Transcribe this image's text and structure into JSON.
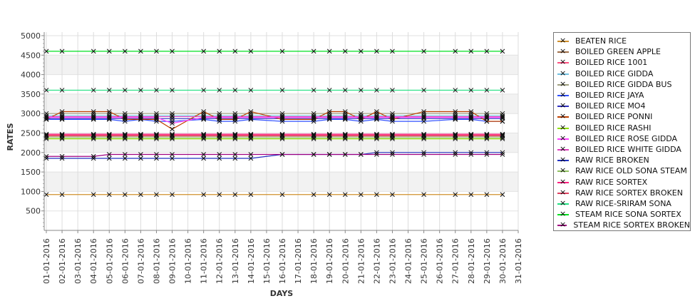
{
  "chart_data": {
    "type": "line",
    "title": "",
    "xlabel": "DAYS",
    "ylabel": "RATES",
    "ylim": [
      0,
      5000
    ],
    "yticks": [
      500,
      1000,
      1500,
      2000,
      2500,
      3000,
      3500,
      4000,
      4500,
      5000
    ],
    "xticks": [
      "01-01-2016",
      "02-01-2016",
      "03-01-2016",
      "04-01-2016",
      "05-01-2016",
      "06-01-2016",
      "07-01-2016",
      "08-01-2016",
      "09-01-2016",
      "10-01-2016",
      "11-01-2016",
      "12-01-2016",
      "13-01-2016",
      "14-01-2016",
      "15-01-2016",
      "16-01-2016",
      "17-01-2016",
      "18-01-2016",
      "19-01-2016",
      "20-01-2016",
      "21-01-2016",
      "22-01-2016",
      "23-01-2016",
      "24-01-2016",
      "25-01-2016",
      "26-01-2016",
      "27-01-2016",
      "28-01-2016",
      "29-01-2016",
      "30-01-2016",
      "31-01-2016"
    ],
    "x_days": [
      1,
      2,
      4,
      5,
      6,
      7,
      8,
      9,
      11,
      12,
      13,
      14,
      16,
      18,
      19,
      20,
      21,
      22,
      23,
      25,
      27,
      28,
      29,
      30
    ],
    "legend_position": "right",
    "series": [
      {
        "name": "BEATEN RICE",
        "color": "#d0902c",
        "values": [
          920,
          920,
          920,
          920,
          920,
          920,
          920,
          920,
          920,
          920,
          920,
          920,
          920,
          920,
          920,
          920,
          920,
          920,
          920,
          920,
          920,
          920,
          920,
          920
        ]
      },
      {
        "name": "BOILED GREEN APPLE",
        "color": "#a0704a",
        "values": [
          2420,
          2420,
          2420,
          2420,
          2420,
          2420,
          2420,
          2420,
          2420,
          2420,
          2420,
          2420,
          2420,
          2420,
          2420,
          2420,
          2420,
          2420,
          2420,
          2420,
          2420,
          2420,
          2420,
          2420
        ]
      },
      {
        "name": "BOILED RICE 1001",
        "color": "#ff5080",
        "values": [
          2450,
          2450,
          2450,
          2450,
          2450,
          2450,
          2450,
          2450,
          2450,
          2450,
          2450,
          2450,
          2450,
          2450,
          2450,
          2450,
          2450,
          2450,
          2450,
          2450,
          2450,
          2450,
          2450,
          2450
        ]
      },
      {
        "name": "BOILED RICE GIDDA",
        "color": "#70c0e0",
        "values": [
          2950,
          2950,
          2950,
          2950,
          2950,
          2950,
          2950,
          2950,
          2950,
          2950,
          2950,
          2950,
          2950,
          2950,
          2950,
          2950,
          2950,
          2950,
          2950,
          2950,
          2950,
          2950,
          2950,
          2950
        ]
      },
      {
        "name": "BOILED RICE GIDDA BUS",
        "color": "#a0a080",
        "values": [
          3000,
          3000,
          3000,
          3000,
          3000,
          3000,
          3000,
          3000,
          3000,
          3000,
          3000,
          3000,
          3000,
          3000,
          3000,
          3000,
          3000,
          3000,
          3000,
          3000,
          3000,
          3000,
          3000,
          3000
        ]
      },
      {
        "name": "BOILED RICE JAYA",
        "color": "#3050ff",
        "values": [
          2850,
          2850,
          2850,
          2850,
          2800,
          2850,
          2800,
          2800,
          2850,
          2800,
          2800,
          2850,
          2800,
          2800,
          2850,
          2850,
          2800,
          2850,
          2800,
          2800,
          2850,
          2850,
          2800,
          2800
        ]
      },
      {
        "name": "BOILED RICE MO4",
        "color": "#3030c0",
        "values": [
          2870,
          2870,
          2870,
          2870,
          2870,
          2870,
          2870,
          2870,
          2870,
          2870,
          2870,
          2870,
          2870,
          2870,
          2870,
          2870,
          2870,
          2870,
          2870,
          2870,
          2870,
          2870,
          2870,
          2870
        ]
      },
      {
        "name": "BOILED RICE PONNI",
        "color": "#c04000",
        "values": [
          2850,
          3050,
          3050,
          3050,
          2850,
          2850,
          2850,
          2600,
          3050,
          2850,
          2850,
          3050,
          2850,
          2850,
          3050,
          3050,
          2850,
          3050,
          2850,
          3050,
          3050,
          3050,
          2800,
          2800
        ]
      },
      {
        "name": "BOILED RICE RASHI",
        "color": "#90e000",
        "values": [
          2350,
          2350,
          2350,
          2350,
          2350,
          2350,
          2350,
          2350,
          2350,
          2350,
          2350,
          2350,
          2350,
          2350,
          2350,
          2350,
          2350,
          2350,
          2350,
          2350,
          2350,
          2350,
          2350,
          2350
        ]
      },
      {
        "name": "BOILED RICE ROSE GIDDA",
        "color": "#ff40ff",
        "values": [
          2900,
          2900,
          2900,
          2900,
          2900,
          2900,
          2900,
          2750,
          2900,
          2900,
          2900,
          2900,
          2900,
          2900,
          2900,
          2900,
          2900,
          2900,
          2900,
          2900,
          2900,
          2900,
          2900,
          2900
        ]
      },
      {
        "name": "BOILED RICE WHITE GIDDA",
        "color": "#e040c0",
        "values": [
          2920,
          2920,
          2920,
          2920,
          2920,
          2920,
          2920,
          2920,
          2920,
          2920,
          2920,
          2920,
          2920,
          2920,
          2920,
          2920,
          2920,
          2920,
          2920,
          2920,
          2920,
          2920,
          2920,
          2920
        ]
      },
      {
        "name": "RAW RICE BROKEN",
        "color": "#2030c0",
        "values": [
          1850,
          1850,
          1850,
          1850,
          1850,
          1850,
          1850,
          1850,
          1850,
          1850,
          1850,
          1850,
          1950,
          1950,
          1950,
          1950,
          1950,
          2000,
          2000,
          2000,
          2000,
          2000,
          2000,
          2000
        ]
      },
      {
        "name": "RAW RICE OLD SONA STEAM",
        "color": "#90c060",
        "values": [
          2380,
          2380,
          2380,
          2380,
          2380,
          2380,
          2380,
          2380,
          2380,
          2380,
          2380,
          2380,
          2380,
          2380,
          2380,
          2380,
          2380,
          2380,
          2380,
          2380,
          2380,
          2380,
          2380,
          2380
        ]
      },
      {
        "name": "RAW RICE SORTEX",
        "color": "#ff2080",
        "values": [
          2470,
          2470,
          2470,
          2470,
          2470,
          2470,
          2470,
          2470,
          2470,
          2470,
          2470,
          2470,
          2470,
          2470,
          2470,
          2470,
          2470,
          2470,
          2470,
          2470,
          2470,
          2470,
          2470,
          2470
        ]
      },
      {
        "name": "RAW RICE SORTEX BROKEN",
        "color": "#e04060",
        "values": [
          2430,
          2430,
          2430,
          2430,
          2430,
          2430,
          2430,
          2430,
          2430,
          2430,
          2430,
          2430,
          2430,
          2430,
          2430,
          2430,
          2430,
          2430,
          2430,
          2430,
          2430,
          2430,
          2430,
          2430
        ]
      },
      {
        "name": "RAW RICE-SRIRAM SONA",
        "color": "#20e080",
        "values": [
          3600,
          3600,
          3600,
          3600,
          3600,
          3600,
          3600,
          3600,
          3600,
          3600,
          3600,
          3600,
          3600,
          3600,
          3600,
          3600,
          3600,
          3600,
          3600,
          3600,
          3600,
          3600,
          3600,
          3600
        ]
      },
      {
        "name": "STEAM RICE SONA SORTEX",
        "color": "#00e020",
        "values": [
          4600,
          4600,
          4600,
          4600,
          4600,
          4600,
          4600,
          4600,
          4600,
          4600,
          4600,
          4600,
          4600,
          4600,
          4600,
          4600,
          4600,
          4600,
          4600,
          4600,
          4600,
          4600,
          4600,
          4600
        ]
      },
      {
        "name": "STEAM RICE SORTEX BROKEN",
        "color": "#a00080",
        "values": [
          1900,
          1900,
          1900,
          1950,
          1950,
          1950,
          1950,
          1950,
          1950,
          1950,
          1950,
          1950,
          1950,
          1950,
          1950,
          1950,
          1950,
          1950,
          1950,
          1950,
          1950,
          1950,
          1950,
          1950
        ]
      }
    ]
  }
}
